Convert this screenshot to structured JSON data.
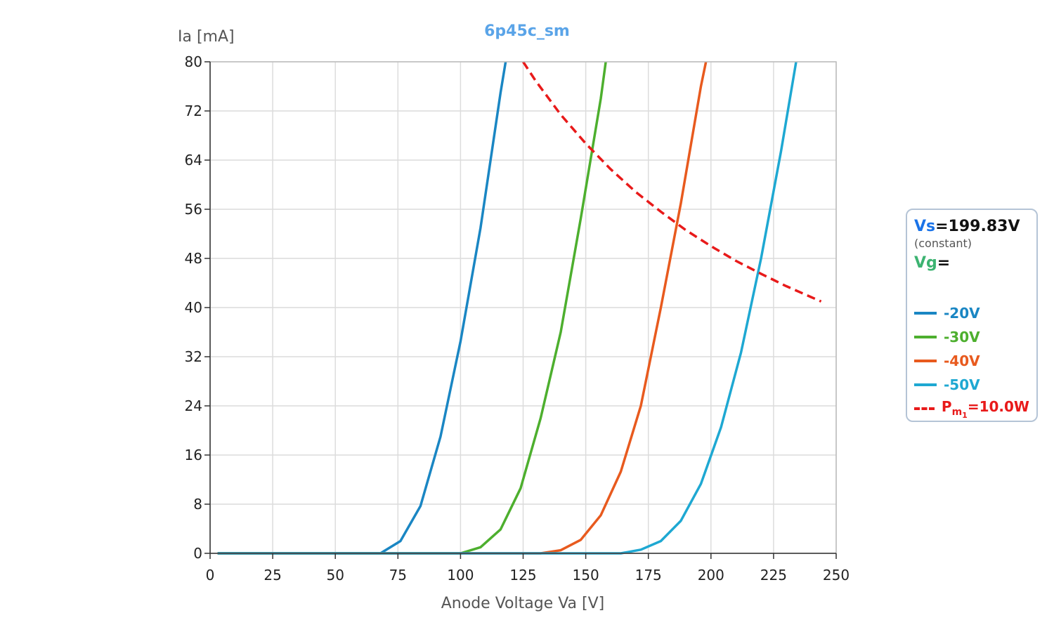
{
  "chart_data": {
    "type": "line",
    "title": "6p45c_sm",
    "xlabel": "Anode Voltage Va [V]",
    "ylabel": "Ia [mA]",
    "xlim": [
      0,
      250
    ],
    "ylim": [
      0,
      80
    ],
    "xticks": [
      0,
      25,
      50,
      75,
      100,
      125,
      150,
      175,
      200,
      225,
      250
    ],
    "yticks": [
      0,
      8,
      16,
      24,
      32,
      40,
      48,
      56,
      64,
      72,
      80
    ],
    "grid": true,
    "legend_position": "right",
    "series": [
      {
        "name": "-20V",
        "color": "#1a86c3",
        "dashed": false,
        "x": [
          3,
          68,
          76,
          84,
          92,
          100,
          108,
          116,
          118
        ],
        "y": [
          0,
          0,
          2,
          7.7,
          19,
          34.5,
          53,
          75,
          80
        ]
      },
      {
        "name": "-30V",
        "color": "#4daf2e",
        "dashed": false,
        "x": [
          3,
          100,
          108,
          116,
          124,
          132,
          140,
          148,
          156,
          158
        ],
        "y": [
          0,
          0,
          1,
          3.9,
          10.6,
          22,
          36,
          54.5,
          74,
          80
        ]
      },
      {
        "name": "-40V",
        "color": "#e85a1e",
        "dashed": false,
        "x": [
          3,
          132,
          140,
          148,
          156,
          164,
          172,
          180,
          188,
          196,
          198
        ],
        "y": [
          0,
          0,
          0.5,
          2.2,
          6.2,
          13.3,
          24,
          40,
          57,
          76,
          80
        ]
      },
      {
        "name": "-50V",
        "color": "#1ea8d2",
        "dashed": false,
        "x": [
          3,
          164,
          172,
          180,
          188,
          196,
          204,
          212,
          220,
          228,
          234
        ],
        "y": [
          0,
          0,
          0.6,
          2,
          5.3,
          11.3,
          20.5,
          32.7,
          48,
          65.5,
          80
        ]
      },
      {
        "name": "Pm1=10.0W",
        "color": "#e81a1a",
        "dashed": true,
        "x": [
          125,
          130,
          140,
          150,
          160,
          170,
          180,
          190,
          200,
          210,
          220,
          230,
          240,
          244
        ],
        "y": [
          80,
          76.9,
          71.4,
          66.7,
          62.5,
          58.8,
          55.6,
          52.6,
          50,
          47.6,
          45.5,
          43.5,
          41.7,
          41
        ]
      }
    ]
  },
  "legend": {
    "vs_key": "Vs",
    "vs_value": "=199.83V",
    "vs_note": "(constant)",
    "vg_key": "Vg",
    "vg_value": "=",
    "items": [
      {
        "label": "-20V",
        "color": "#1a86c3"
      },
      {
        "label": "-30V",
        "color": "#4daf2e"
      },
      {
        "label": "-40V",
        "color": "#e85a1e"
      },
      {
        "label": "-50V",
        "color": "#1ea8d2"
      }
    ],
    "power": {
      "prefix": "P",
      "sub1": "m",
      "sub2": "1",
      "value": "=10.0W",
      "color": "#e81a1a"
    },
    "vs_color": "#1a73e8",
    "vg_color": "#3cb371"
  }
}
